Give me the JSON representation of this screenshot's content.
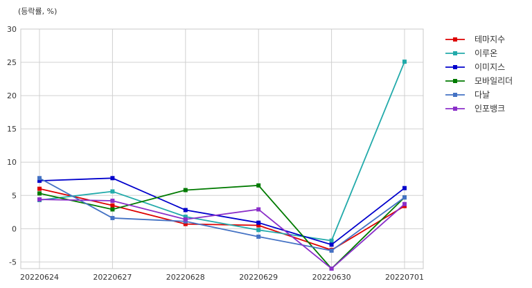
{
  "chart_data": {
    "type": "line",
    "unit_label": "(등락률, %)",
    "x": [
      "20220624",
      "20220627",
      "20220628",
      "20220629",
      "20220630",
      "20220701"
    ],
    "ylim": [
      -6,
      30
    ],
    "yticks": [
      -5,
      0,
      5,
      10,
      15,
      20,
      25,
      30
    ],
    "grid": true,
    "legend_position": "outside-top-right",
    "series": [
      {
        "name": "테마지수",
        "color": "#dd0000",
        "values": [
          6.0,
          3.5,
          0.7,
          0.5,
          -3.2,
          3.4
        ]
      },
      {
        "name": "이루온",
        "color": "#22aaaa",
        "values": [
          4.3,
          5.6,
          1.8,
          -0.2,
          -1.8,
          25.1
        ]
      },
      {
        "name": "이미지스",
        "color": "#0000cc",
        "values": [
          7.2,
          7.6,
          2.8,
          0.9,
          -2.4,
          6.1
        ]
      },
      {
        "name": "모바일리더",
        "color": "#007a00",
        "values": [
          5.3,
          2.9,
          5.8,
          6.5,
          -6.0,
          4.7
        ]
      },
      {
        "name": "다날",
        "color": "#4472c4",
        "values": [
          7.6,
          1.6,
          1.1,
          -1.2,
          -3.3,
          4.7
        ]
      },
      {
        "name": "인포뱅크",
        "color": "#8b2fc9",
        "values": [
          4.4,
          4.2,
          1.4,
          2.9,
          -6.0,
          3.7
        ]
      }
    ]
  }
}
